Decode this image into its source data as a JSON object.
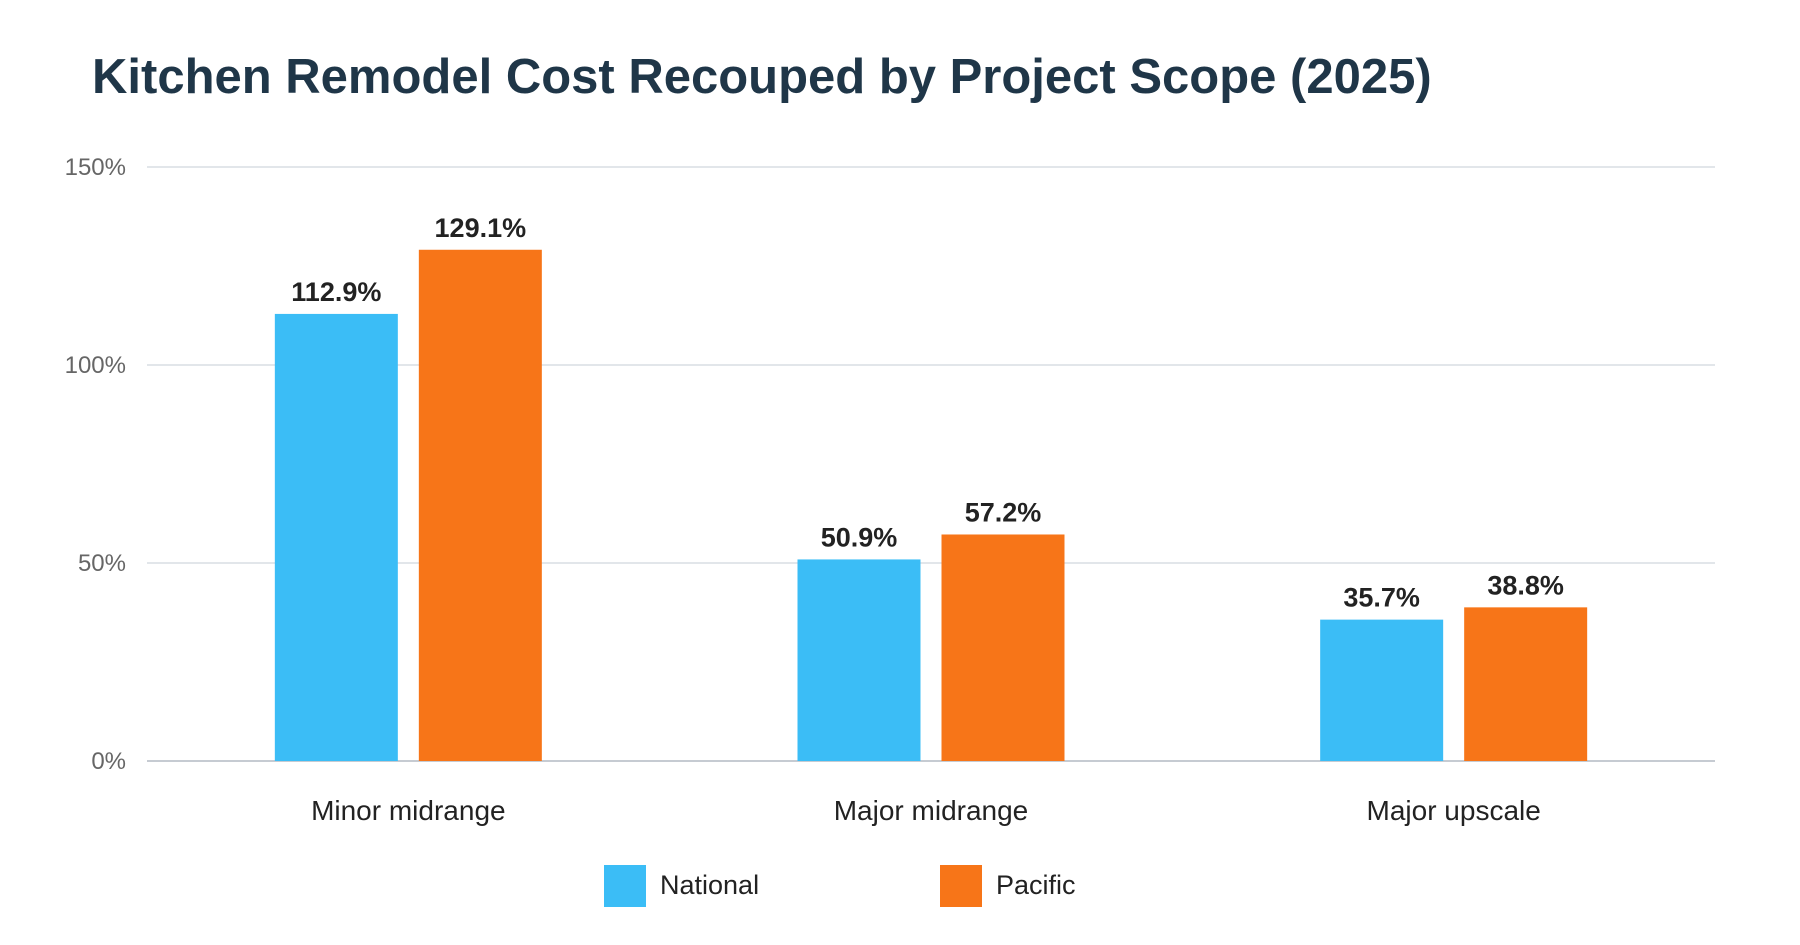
{
  "chart_data": {
    "type": "bar",
    "title": "Kitchen Remodel Cost Recouped by Project Scope (2025)",
    "xlabel": "",
    "ylabel": "",
    "categories": [
      "Minor midrange",
      "Major midrange",
      "Major upscale"
    ],
    "series": [
      {
        "name": "National",
        "values": [
          112.9,
          50.9,
          35.7
        ],
        "labels": [
          "112.9%",
          "50.9%",
          "35.7%"
        ],
        "color": "#3bbdf6"
      },
      {
        "name": "Pacific",
        "values": [
          129.1,
          57.2,
          38.8
        ],
        "labels": [
          "129.1%",
          "57.2%",
          "38.8%"
        ],
        "color": "#f77518"
      }
    ],
    "ylim": [
      0,
      150
    ],
    "yticks": [
      0,
      50,
      100,
      150
    ],
    "ytick_labels": [
      "0%",
      "50%",
      "100%",
      "150%"
    ],
    "grid": true,
    "legend_position": "bottom",
    "colors": {
      "title": "#1f3648",
      "grid": "#d9dde3",
      "axis": "#c6cbd2"
    }
  }
}
